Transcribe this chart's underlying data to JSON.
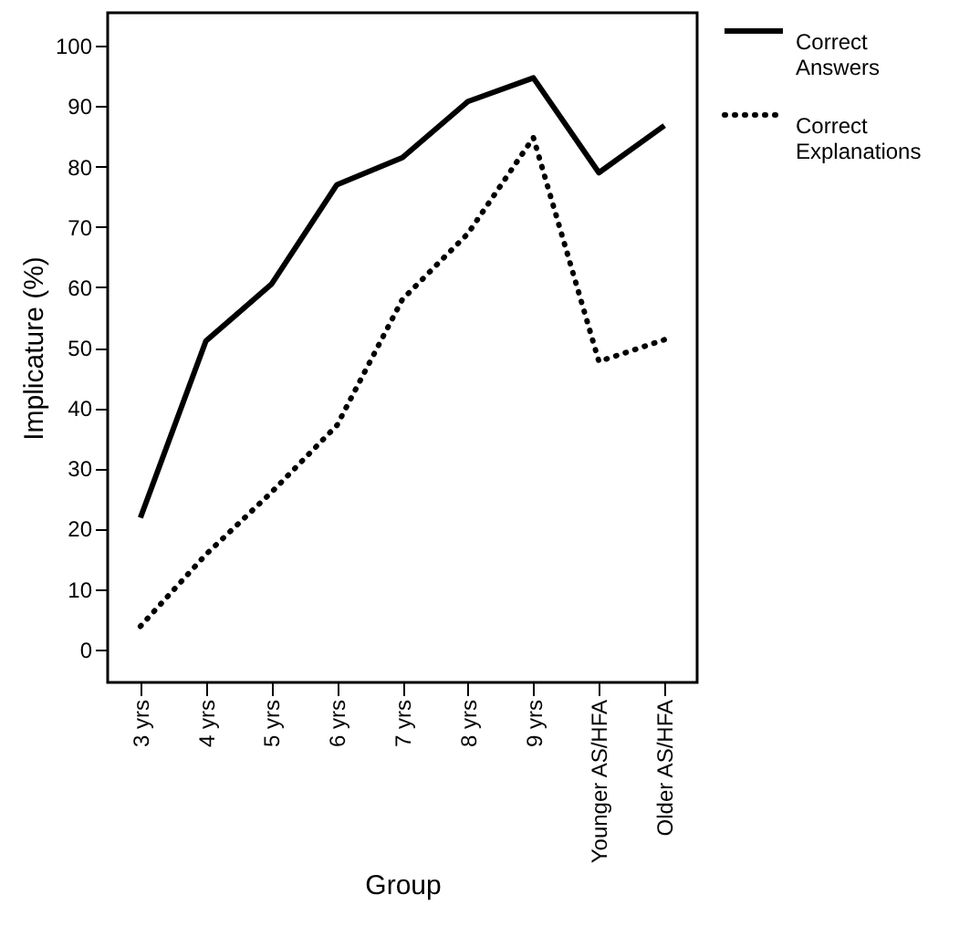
{
  "chart_data": {
    "type": "line",
    "xlabel": "Group",
    "ylabel": "Implicature (%)",
    "categories": [
      "3 yrs",
      "4 yrs",
      "5 yrs",
      "6 yrs",
      "7 yrs",
      "8 yrs",
      "9 yrs",
      "Younger AS/HFA",
      "Older AS/HFA"
    ],
    "series": [
      {
        "name": "Correct Answers",
        "color": "#000000",
        "line_style": "solid",
        "values": [
          21.8,
          51.1,
          60.5,
          77.0,
          81.5,
          90.8,
          94.7,
          79.0,
          86.8
        ]
      },
      {
        "name": "Correct Explanations",
        "color": "#000000",
        "line_style": "dotted",
        "values": [
          3.8,
          15.7,
          26.0,
          37.1,
          58.0,
          68.9,
          84.8,
          47.7,
          51.3
        ]
      }
    ],
    "ylim": [
      -5.5,
      105.5
    ],
    "yticks": [
      0,
      10,
      20,
      30,
      40,
      50,
      60,
      70,
      80,
      90,
      100
    ],
    "grid": false,
    "legend": "top right"
  }
}
